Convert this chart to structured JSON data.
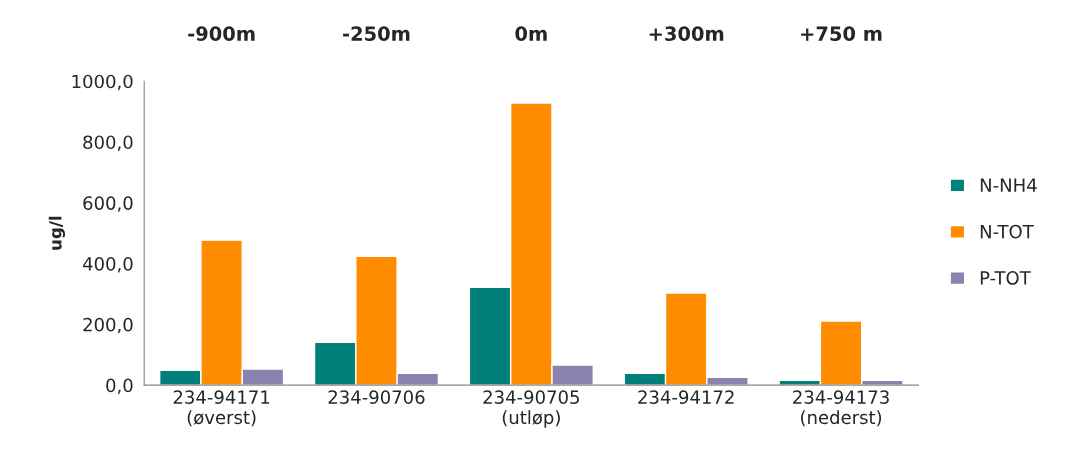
{
  "chart_data": {
    "type": "bar",
    "ylabel": "ug/l",
    "categories": [
      "234-94171\n(øverst)",
      "234-90706",
      "234-90705\n(utløp)",
      "234-94172",
      "234-94173\n(nederst)"
    ],
    "series": [
      {
        "name": "N-NH4",
        "color": "#00807a",
        "values": [
          49,
          141,
          322,
          39,
          16
        ]
      },
      {
        "name": "N-TOT",
        "color": "#ff8c00",
        "values": [
          477,
          424,
          928,
          303,
          211
        ]
      },
      {
        "name": "P-TOT",
        "color": "#8b82ad",
        "values": [
          53,
          39,
          66,
          26,
          16
        ]
      }
    ],
    "ylim": [
      0,
      1000
    ],
    "yticks": [
      {
        "value": 0,
        "label": "0,0"
      },
      {
        "value": 200,
        "label": "200,0"
      },
      {
        "value": 400,
        "label": "400,0"
      },
      {
        "value": 600,
        "label": "600,0"
      },
      {
        "value": 800,
        "label": "800,0"
      },
      {
        "value": 1000,
        "label": "1000,0"
      }
    ],
    "annotations": [
      "-900m",
      "-250m",
      "0m",
      "+300m",
      "+750 m"
    ],
    "grid": false,
    "legend": "right"
  }
}
